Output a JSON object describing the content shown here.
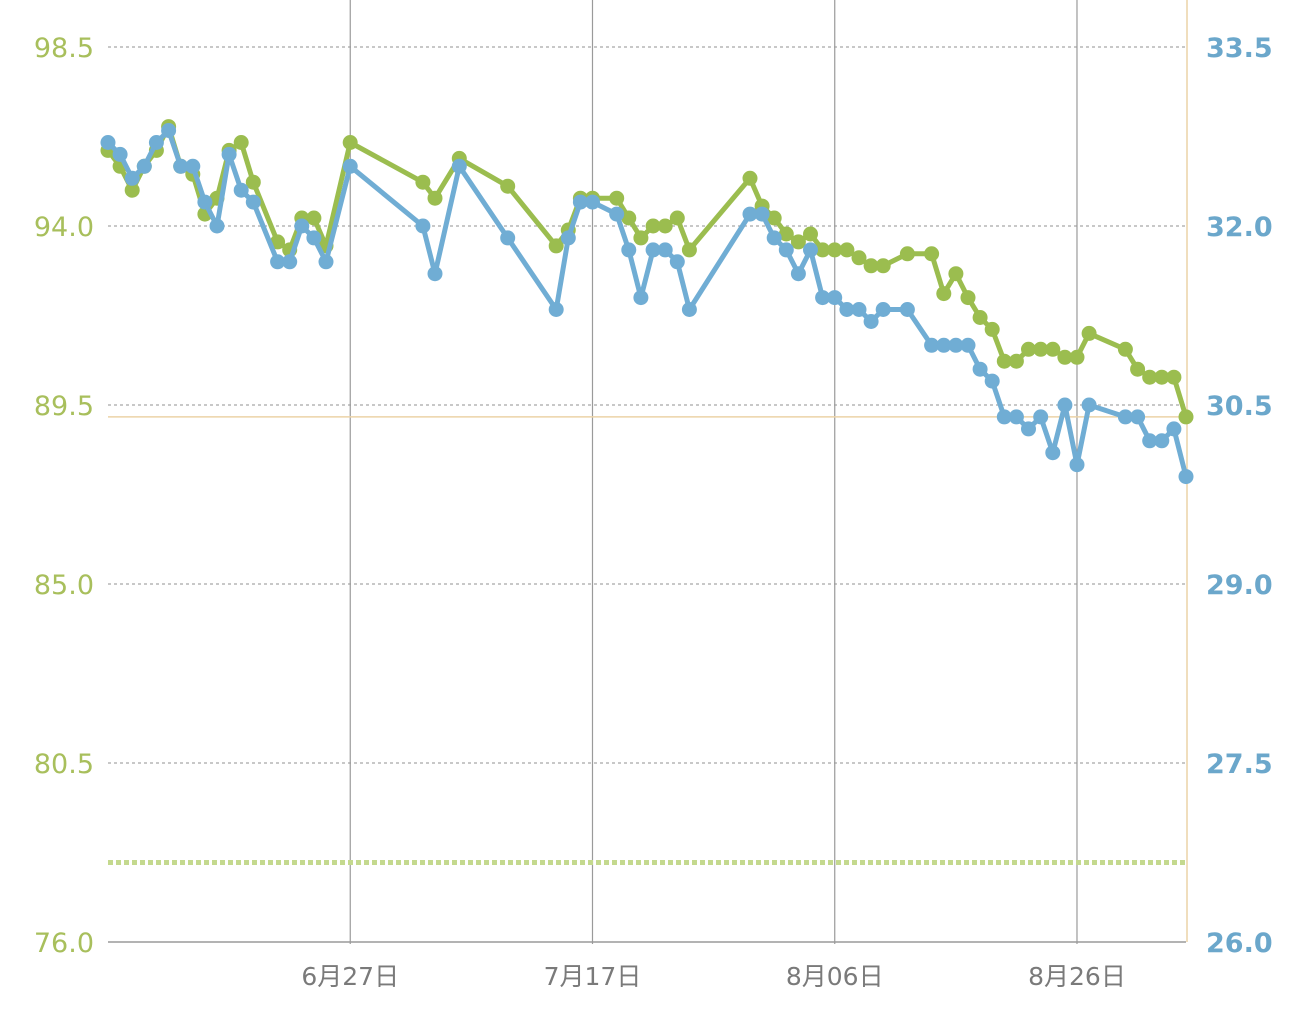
{
  "chart_data": {
    "type": "line",
    "title": "",
    "x_axis": {
      "ticks": [
        {
          "date": "2023-06-27",
          "label": "6月27日"
        },
        {
          "date": "2023-07-17",
          "label": "7月17日"
        },
        {
          "date": "2023-08-06",
          "label": "8月06日"
        },
        {
          "date": "2023-08-26",
          "label": "8月26日"
        }
      ],
      "range": [
        "2023-06-07",
        "2023-09-04"
      ]
    },
    "y_axis_left": {
      "ticks": [
        "98.5",
        "94.0",
        "89.5",
        "85.0",
        "80.5",
        "76.0"
      ],
      "range": [
        76.0,
        98.5
      ]
    },
    "y_axis_right": {
      "ticks": [
        "33.5",
        "32.0",
        "30.5",
        "29.0",
        "27.5",
        "26.0"
      ],
      "range": [
        26.0,
        33.5
      ]
    },
    "reference_lines": [
      {
        "axis": "left",
        "value": 78.0,
        "style": "dotted"
      },
      {
        "axis": "right",
        "value": 30.4,
        "style": "solid"
      }
    ],
    "grid": true,
    "colors": {
      "left_series": "#9bbd4f",
      "right_series": "#70add4",
      "left_axis_text": "#a8bf5c",
      "right_axis_text": "#6ba7cb",
      "right_axis_line": "#ecd3a7",
      "vertical_grid": "#9a9a9a",
      "horizontal_grid": "#b5b5b5"
    },
    "series": [
      {
        "axis": "left",
        "x": [
          "2023-06-07",
          "2023-06-08",
          "2023-06-09",
          "2023-06-10",
          "2023-06-11",
          "2023-06-12",
          "2023-06-13",
          "2023-06-14",
          "2023-06-15",
          "2023-06-16",
          "2023-06-17",
          "2023-06-18",
          "2023-06-19",
          "2023-06-21",
          "2023-06-22",
          "2023-06-23",
          "2023-06-24",
          "2023-06-25",
          "2023-06-27",
          "2023-07-03",
          "2023-07-04",
          "2023-07-06",
          "2023-07-10",
          "2023-07-14",
          "2023-07-15",
          "2023-07-16",
          "2023-07-17",
          "2023-07-19",
          "2023-07-20",
          "2023-07-21",
          "2023-07-22",
          "2023-07-23",
          "2023-07-24",
          "2023-07-25",
          "2023-07-30",
          "2023-07-31",
          "2023-08-01",
          "2023-08-02",
          "2023-08-03",
          "2023-08-04",
          "2023-08-05",
          "2023-08-06",
          "2023-08-07",
          "2023-08-08",
          "2023-08-09",
          "2023-08-10",
          "2023-08-12",
          "2023-08-14",
          "2023-08-15",
          "2023-08-16",
          "2023-08-17",
          "2023-08-18",
          "2023-08-19",
          "2023-08-20",
          "2023-08-21",
          "2023-08-22",
          "2023-08-23",
          "2023-08-24",
          "2023-08-25",
          "2023-08-26",
          "2023-08-27",
          "2023-08-30",
          "2023-08-31",
          "2023-09-01",
          "2023-09-02",
          "2023-09-03",
          "2023-09-04"
        ],
        "values": [
          95.9,
          95.5,
          94.9,
          95.5,
          95.9,
          96.5,
          95.5,
          95.3,
          94.3,
          94.7,
          95.9,
          96.1,
          95.1,
          93.6,
          93.4,
          94.2,
          94.2,
          93.5,
          96.1,
          95.1,
          94.7,
          95.7,
          95.0,
          93.5,
          93.9,
          94.7,
          94.7,
          94.7,
          94.2,
          93.7,
          94.0,
          94.0,
          94.2,
          93.4,
          95.2,
          94.5,
          94.2,
          93.8,
          93.6,
          93.8,
          93.4,
          93.4,
          93.4,
          93.2,
          93.0,
          93.0,
          93.3,
          93.3,
          92.3,
          92.8,
          92.2,
          91.7,
          91.4,
          90.6,
          90.6,
          90.9,
          90.9,
          90.9,
          90.7,
          90.7,
          91.3,
          90.9,
          90.4,
          90.2,
          90.2,
          90.2,
          89.2
        ]
      },
      {
        "axis": "right",
        "x": [
          "2023-06-07",
          "2023-06-08",
          "2023-06-09",
          "2023-06-10",
          "2023-06-11",
          "2023-06-12",
          "2023-06-13",
          "2023-06-14",
          "2023-06-15",
          "2023-06-16",
          "2023-06-17",
          "2023-06-18",
          "2023-06-19",
          "2023-06-21",
          "2023-06-22",
          "2023-06-23",
          "2023-06-24",
          "2023-06-25",
          "2023-06-27",
          "2023-07-03",
          "2023-07-04",
          "2023-07-06",
          "2023-07-10",
          "2023-07-14",
          "2023-07-15",
          "2023-07-16",
          "2023-07-17",
          "2023-07-19",
          "2023-07-20",
          "2023-07-21",
          "2023-07-22",
          "2023-07-23",
          "2023-07-24",
          "2023-07-25",
          "2023-07-30",
          "2023-07-31",
          "2023-08-01",
          "2023-08-02",
          "2023-08-03",
          "2023-08-04",
          "2023-08-05",
          "2023-08-06",
          "2023-08-07",
          "2023-08-08",
          "2023-08-09",
          "2023-08-10",
          "2023-08-12",
          "2023-08-14",
          "2023-08-15",
          "2023-08-16",
          "2023-08-17",
          "2023-08-18",
          "2023-08-19",
          "2023-08-20",
          "2023-08-21",
          "2023-08-22",
          "2023-08-23",
          "2023-08-24",
          "2023-08-25",
          "2023-08-26",
          "2023-08-27",
          "2023-08-30",
          "2023-08-31",
          "2023-09-01",
          "2023-09-02",
          "2023-09-03",
          "2023-09-04"
        ],
        "values": [
          32.7,
          32.6,
          32.4,
          32.5,
          32.7,
          32.8,
          32.5,
          32.5,
          32.2,
          32.0,
          32.6,
          32.3,
          32.2,
          31.7,
          31.7,
          32.0,
          31.9,
          31.7,
          32.5,
          32.0,
          31.6,
          32.5,
          31.9,
          31.3,
          31.9,
          32.2,
          32.2,
          32.1,
          31.8,
          31.4,
          31.8,
          31.8,
          31.7,
          31.3,
          32.1,
          32.1,
          31.9,
          31.8,
          31.6,
          31.8,
          31.4,
          31.4,
          31.3,
          31.3,
          31.2,
          31.3,
          31.3,
          31.0,
          31.0,
          31.0,
          31.0,
          30.8,
          30.7,
          30.4,
          30.4,
          30.3,
          30.4,
          30.1,
          30.5,
          30.0,
          30.5,
          30.4,
          30.4,
          30.2,
          30.2,
          30.3,
          29.9
        ]
      }
    ]
  }
}
